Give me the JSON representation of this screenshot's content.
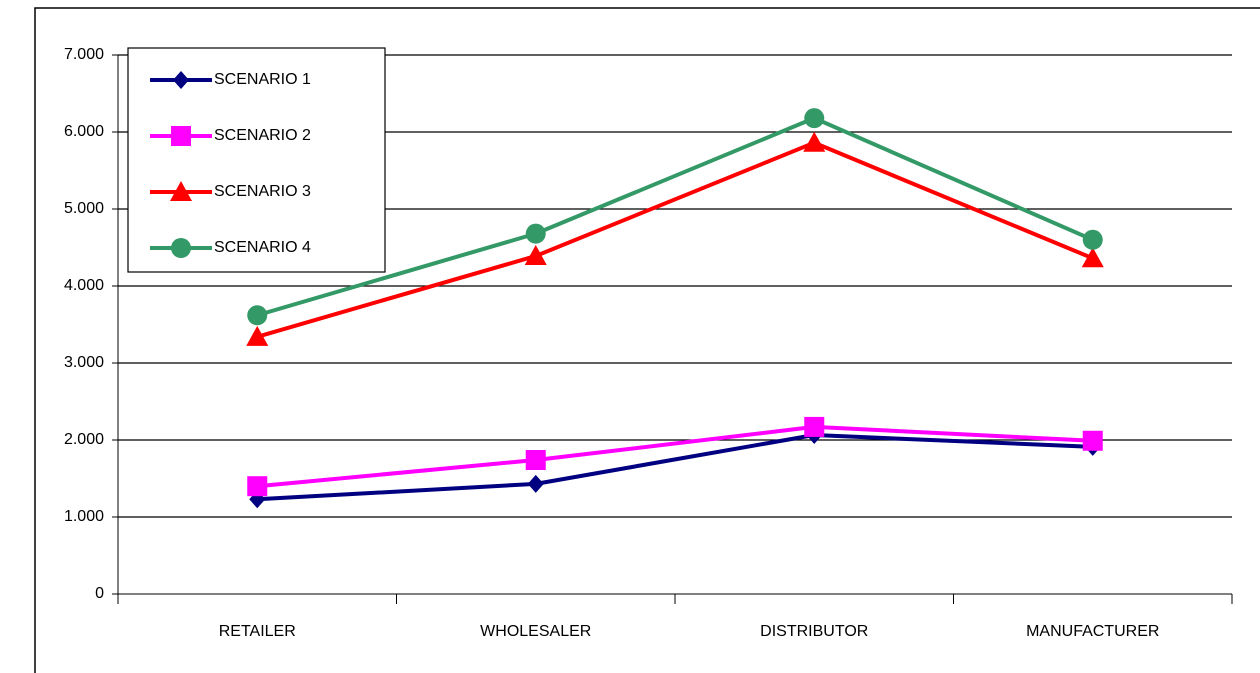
{
  "chart_data": {
    "type": "line",
    "categories": [
      "RETAILER",
      "WHOLESALER",
      "DISTRIBUTOR",
      "MANUFACTURER"
    ],
    "series": [
      {
        "name": "SCENARIO 1",
        "color": "#000080",
        "marker": "diamond",
        "values": [
          1230,
          1430,
          2065,
          1910
        ]
      },
      {
        "name": "SCENARIO 2",
        "color": "#ff00ff",
        "marker": "square",
        "values": [
          1400,
          1740,
          2170,
          1990
        ]
      },
      {
        "name": "SCENARIO 3",
        "color": "#ff0000",
        "marker": "triangle",
        "values": [
          3340,
          4390,
          5860,
          4360
        ]
      },
      {
        "name": "SCENARIO 4",
        "color": "#339966",
        "marker": "circle",
        "values": [
          3620,
          4680,
          6180,
          4600
        ]
      }
    ],
    "ylim": [
      0,
      7000
    ],
    "yticks": [
      {
        "value": 0,
        "label": "0"
      },
      {
        "value": 1000,
        "label": "1.000"
      },
      {
        "value": 2000,
        "label": "2.000"
      },
      {
        "value": 3000,
        "label": "3.000"
      },
      {
        "value": 4000,
        "label": "4.000"
      },
      {
        "value": 5000,
        "label": "5.000"
      },
      {
        "value": 6000,
        "label": "6.000"
      },
      {
        "value": 7000,
        "label": "7.000"
      }
    ],
    "grid": true,
    "legend": "upper left"
  }
}
